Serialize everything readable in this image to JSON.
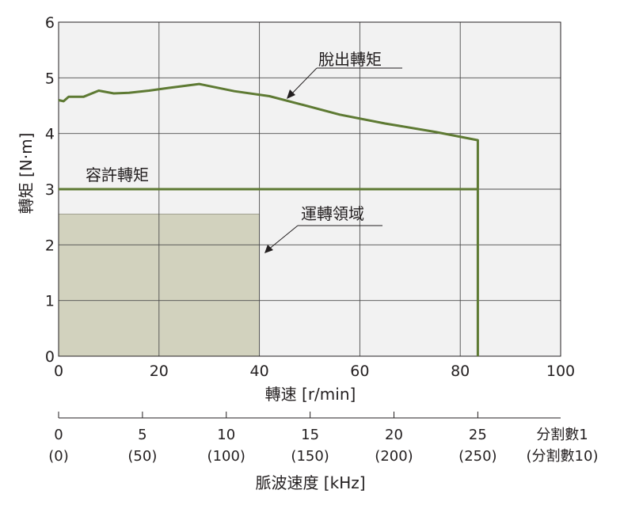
{
  "chart_data": {
    "type": "line",
    "xlabel": "轉速 [r/min]",
    "ylabel": "轉矩 [N·m]",
    "xlim": [
      0,
      100
    ],
    "ylim": [
      0,
      6
    ],
    "x_ticks": [
      "0",
      "20",
      "40",
      "60",
      "80",
      "100"
    ],
    "y_ticks": [
      "0",
      "1",
      "2",
      "3",
      "4",
      "5",
      "6"
    ],
    "grid": true,
    "series": [
      {
        "name": "脫出轉矩",
        "color": "#5e7a33",
        "x": [
          0,
          1,
          2,
          3,
          5,
          8,
          11,
          14,
          18,
          22,
          28,
          35,
          42,
          48,
          56,
          65,
          75,
          83.5,
          83.5
        ],
        "y": [
          4.6,
          4.58,
          4.66,
          4.66,
          4.66,
          4.77,
          4.72,
          4.73,
          4.77,
          4.82,
          4.89,
          4.76,
          4.67,
          4.53,
          4.34,
          4.18,
          4.03,
          3.88,
          0
        ]
      },
      {
        "name": "容許轉矩",
        "color": "#5e7a33",
        "x": [
          0,
          83.5
        ],
        "y": [
          3,
          3
        ]
      }
    ],
    "regions": [
      {
        "name": "運轉領域",
        "x": [
          0,
          40
        ],
        "y": [
          0,
          2.55
        ],
        "color": "#d2d2be"
      }
    ],
    "secondary_axis": {
      "label": "脈波速度 [kHz]",
      "ticks_div1": [
        "0",
        "5",
        "10",
        "15",
        "20",
        "25"
      ],
      "ticks_div10": [
        "(0)",
        "(50)",
        "(100)",
        "(150)",
        "(200)",
        "(250)"
      ],
      "values_div1": [
        0,
        5,
        10,
        15,
        20,
        25
      ],
      "unit_label_div1": "分割數1",
      "unit_label_div10": "(分割數10)"
    },
    "plot_background": "#f2f2f2",
    "grid_color": "#4d4d4d"
  }
}
